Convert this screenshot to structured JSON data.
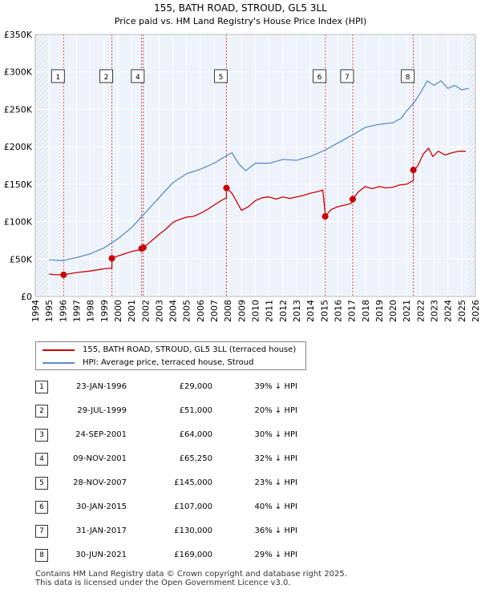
{
  "chart_data": {
    "type": "line",
    "title": "155, BATH ROAD, STROUD, GL5 3LL",
    "subtitle": "Price paid vs. HM Land Registry's House Price Index (HPI)",
    "xlabel": "",
    "ylabel": "",
    "xlim": [
      1994,
      2026
    ],
    "ylim": [
      0,
      350000
    ],
    "y_ticks": [
      0,
      50000,
      100000,
      150000,
      200000,
      250000,
      300000,
      350000
    ],
    "y_tick_labels": [
      "£0",
      "£50K",
      "£100K",
      "£150K",
      "£200K",
      "£250K",
      "£300K",
      "£350K"
    ],
    "x_ticks": [
      1994,
      1995,
      1996,
      1997,
      1998,
      1999,
      2000,
      2001,
      2002,
      2003,
      2004,
      2005,
      2006,
      2007,
      2008,
      2009,
      2010,
      2011,
      2012,
      2013,
      2014,
      2015,
      2016,
      2017,
      2018,
      2019,
      2020,
      2021,
      2022,
      2023,
      2024,
      2025,
      2026
    ],
    "x_tick_labels": [
      "1994",
      "1995",
      "1996",
      "1997",
      "1998",
      "1999",
      "2000",
      "2001",
      "2002",
      "2003",
      "2004",
      "2005",
      "2006",
      "2007",
      "2008",
      "2009",
      "2010",
      "2011",
      "2012",
      "2013",
      "2014",
      "2015",
      "2016",
      "2017",
      "2018",
      "2019",
      "2020",
      "2021",
      "2022",
      "2023",
      "2024",
      "2025",
      "2026"
    ],
    "hatch_before": 1995,
    "hatch_after": 2025.5,
    "series": [
      {
        "name": "155, BATH ROAD, STROUD, GL5 3LL (terraced house)",
        "color": "#cc0000",
        "x": [
          1995.0,
          1995.5,
          1996.06,
          1996.06,
          1997.0,
          1998.0,
          1999.0,
          1999.57,
          1999.57,
          2000.0,
          2000.5,
          2001.0,
          2001.5,
          2001.73,
          2001.73,
          2001.86,
          2001.86,
          2002.5,
          2003.0,
          2003.5,
          2004.0,
          2004.5,
          2005.0,
          2005.5,
          2006.0,
          2006.5,
          2007.0,
          2007.5,
          2007.9,
          2007.9,
          2008.3,
          2008.6,
          2009.0,
          2009.5,
          2010.0,
          2010.5,
          2011.0,
          2011.5,
          2012.0,
          2012.5,
          2013.0,
          2013.5,
          2014.0,
          2014.5,
          2014.9,
          2015.08,
          2015.08,
          2015.5,
          2016.0,
          2016.5,
          2016.9,
          2017.08,
          2017.08,
          2017.5,
          2018.0,
          2018.5,
          2019.0,
          2019.5,
          2020.0,
          2020.5,
          2021.0,
          2021.4,
          2021.49,
          2021.49,
          2021.8,
          2022.2,
          2022.6,
          2022.9,
          2023.3,
          2023.8,
          2024.3,
          2024.8,
          2025.3
        ],
        "values": [
          30000,
          29000,
          29000,
          29000,
          32000,
          34000,
          37000,
          38000,
          51000,
          54000,
          57000,
          60000,
          62000,
          64000,
          64000,
          65250,
          65250,
          75000,
          83000,
          90000,
          99000,
          103000,
          106000,
          107000,
          111000,
          116000,
          122000,
          128000,
          132000,
          145000,
          138000,
          128000,
          115000,
          120000,
          128000,
          132000,
          133000,
          130000,
          133000,
          131000,
          133000,
          135000,
          138000,
          140000,
          142000,
          110000,
          107000,
          116000,
          120000,
          122000,
          124000,
          126000,
          130000,
          140000,
          147000,
          144000,
          147000,
          145000,
          146000,
          149000,
          150000,
          154000,
          155000,
          169000,
          174000,
          190000,
          198000,
          187000,
          194000,
          189000,
          192000,
          194000,
          194000
        ]
      },
      {
        "name": "HPI: Average price, terraced house, Stroud",
        "color": "#5b8ec9",
        "x": [
          1995.0,
          1996.0,
          1997.0,
          1998.0,
          1999.0,
          2000.0,
          2001.0,
          2002.0,
          2003.0,
          2004.0,
          2005.0,
          2006.0,
          2007.0,
          2007.8,
          2008.3,
          2008.8,
          2009.3,
          2010.0,
          2011.0,
          2012.0,
          2013.0,
          2014.0,
          2015.0,
          2016.0,
          2017.0,
          2018.0,
          2019.0,
          2020.0,
          2020.6,
          2021.0,
          2021.5,
          2022.0,
          2022.5,
          2023.0,
          2023.5,
          2024.0,
          2024.5,
          2025.0,
          2025.5
        ],
        "values": [
          49000,
          48000,
          52000,
          57000,
          65000,
          77000,
          92000,
          112000,
          132000,
          152000,
          164000,
          170000,
          178000,
          187000,
          192000,
          177000,
          168000,
          178000,
          178000,
          183000,
          182000,
          187000,
          195000,
          205000,
          215000,
          226000,
          230000,
          232000,
          238000,
          248000,
          258000,
          272000,
          288000,
          282000,
          288000,
          278000,
          282000,
          276000,
          278000
        ]
      }
    ],
    "markers": [
      {
        "num": "1",
        "x": 1996.06,
        "y": 29000
      },
      {
        "num": "2",
        "x": 1999.57,
        "y": 51000
      },
      {
        "num": "3",
        "x": 2001.73,
        "y": 64000
      },
      {
        "num": "4",
        "x": 2001.86,
        "y": 65250
      },
      {
        "num": "5",
        "x": 2007.9,
        "y": 145000
      },
      {
        "num": "6",
        "x": 2015.08,
        "y": 107000
      },
      {
        "num": "7",
        "x": 2017.08,
        "y": 130000
      },
      {
        "num": "8",
        "x": 2021.49,
        "y": 169000
      }
    ],
    "box_labels": [
      "1",
      "2",
      "4",
      "5",
      "6",
      "7",
      "8"
    ]
  },
  "legend": {
    "property_label": "155, BATH ROAD, STROUD, GL5 3LL (terraced house)",
    "hpi_label": "HPI: Average price, terraced house, Stroud"
  },
  "transactions": [
    {
      "num": "1",
      "date": "23-JAN-1996",
      "price": "£29,000",
      "hpi": "39% ↓ HPI"
    },
    {
      "num": "2",
      "date": "29-JUL-1999",
      "price": "£51,000",
      "hpi": "20% ↓ HPI"
    },
    {
      "num": "3",
      "date": "24-SEP-2001",
      "price": "£64,000",
      "hpi": "30% ↓ HPI"
    },
    {
      "num": "4",
      "date": "09-NOV-2001",
      "price": "£65,250",
      "hpi": "32% ↓ HPI"
    },
    {
      "num": "5",
      "date": "28-NOV-2007",
      "price": "£145,000",
      "hpi": "23% ↓ HPI"
    },
    {
      "num": "6",
      "date": "30-JAN-2015",
      "price": "£107,000",
      "hpi": "40% ↓ HPI"
    },
    {
      "num": "7",
      "date": "31-JAN-2017",
      "price": "£130,000",
      "hpi": "36% ↓ HPI"
    },
    {
      "num": "8",
      "date": "30-JUN-2021",
      "price": "£169,000",
      "hpi": "29% ↓ HPI"
    }
  ],
  "footer": {
    "line1": "Contains HM Land Registry data © Crown copyright and database right 2025.",
    "line2": "This data is licensed under the Open Government Licence v3.0."
  }
}
